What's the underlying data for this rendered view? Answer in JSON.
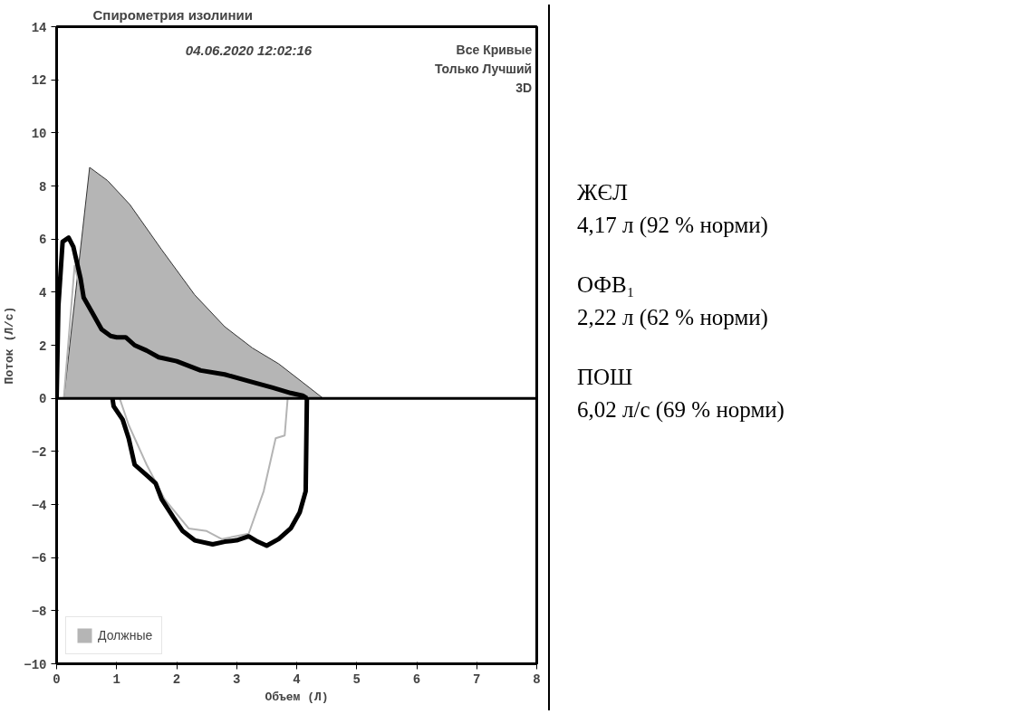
{
  "chart_data": [
    {
      "type": "line",
      "title": "Спирометрия изолинии",
      "xlabel": "Объем (Л)",
      "ylabel": "Поток (Л/с)",
      "xlim": [
        0,
        8
      ],
      "ylim": [
        -10,
        14
      ],
      "xticks": [
        0,
        1,
        2,
        3,
        4,
        5,
        6,
        7,
        8
      ],
      "yticks": [
        -10,
        -8,
        -6,
        -4,
        -2,
        0,
        2,
        4,
        6,
        8,
        10,
        12,
        14
      ],
      "grid": false,
      "legend": "bottom left",
      "marker": "none",
      "line_style": "solid",
      "ref_lines": [
        {
          "axis": "y",
          "value": 0,
          "color": "#000000"
        }
      ],
      "annotations": [
        "04.06.2020 12:02:16",
        "Все Кривые",
        "Только Лучший",
        "3D"
      ],
      "series": [
        {
          "name": "Должные",
          "type": "area",
          "color": "#a8a8a8",
          "x": [
            0.12,
            0.55,
            0.85,
            1.22,
            1.75,
            2.3,
            2.8,
            3.26,
            3.7,
            4.1,
            4.44
          ],
          "values": [
            0,
            8.7,
            8.2,
            7.3,
            5.6,
            3.9,
            2.7,
            1.9,
            1.3,
            0.6,
            0
          ]
        },
        {
          "color": "#b4b4b4",
          "x": [
            0.12,
            0.3,
            0.45,
            0.6,
            0.9,
            1.2,
            1.6,
            2.2,
            2.8,
            3.4,
            3.85
          ],
          "values": [
            0,
            5,
            3.6,
            3.0,
            2.3,
            2.1,
            1.7,
            1.3,
            0.9,
            0.5,
            0.1
          ]
        },
        {
          "color": "#b4b4b4",
          "x": [
            1.05,
            1.2,
            1.5,
            1.8,
            2.2,
            2.5,
            2.75,
            3.2,
            3.45,
            3.65,
            3.8,
            3.85
          ],
          "values": [
            0,
            -1.0,
            -2.5,
            -3.8,
            -4.9,
            -5.0,
            -5.3,
            -5.1,
            -3.5,
            -1.5,
            -1.4,
            0
          ]
        },
        {
          "color": "#000000",
          "x": [
            0,
            0.03,
            0.1,
            0.2,
            0.28,
            0.35,
            0.4,
            0.45,
            0.6,
            0.75,
            0.9,
            1.0,
            1.15,
            1.3,
            1.5,
            1.7,
            2.0,
            2.4,
            2.8,
            3.2,
            3.6,
            3.9,
            4.1,
            4.17
          ],
          "values": [
            0,
            3.5,
            5.9,
            6.05,
            5.7,
            5.0,
            4.5,
            3.8,
            3.2,
            2.6,
            2.35,
            2.3,
            2.3,
            2.0,
            1.8,
            1.55,
            1.4,
            1.05,
            0.9,
            0.65,
            0.4,
            0.2,
            0.1,
            0
          ]
        },
        {
          "color": "#000000",
          "x": [
            0.93,
            0.95,
            1.1,
            1.2,
            1.3,
            1.5,
            1.65,
            1.75,
            1.95,
            2.1,
            2.3,
            2.6,
            2.8,
            3.0,
            3.2,
            3.35,
            3.5,
            3.7,
            3.9,
            4.05,
            4.15,
            4.17
          ],
          "values": [
            0,
            -0.3,
            -0.8,
            -1.5,
            -2.5,
            -2.9,
            -3.2,
            -3.8,
            -4.5,
            -5.0,
            -5.35,
            -5.5,
            -5.4,
            -5.35,
            -5.2,
            -5.4,
            -5.55,
            -5.3,
            -4.9,
            -4.3,
            -3.5,
            0
          ]
        }
      ]
    },
    {
      "type": "other",
      "annotations": [
        "ЖЄЛ",
        "4,17 л (92 % норми)",
        "ОФВ₁",
        "2,22 л (62 % норми)",
        "ПОШ",
        "6,02 л/с (69 % норми)"
      ]
    }
  ]
}
